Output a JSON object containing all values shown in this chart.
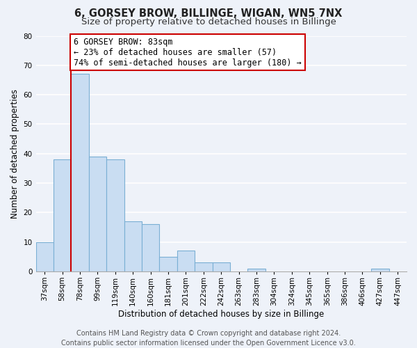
{
  "title": "6, GORSEY BROW, BILLINGE, WIGAN, WN5 7NX",
  "subtitle": "Size of property relative to detached houses in Billinge",
  "xlabel": "Distribution of detached houses by size in Billinge",
  "ylabel": "Number of detached properties",
  "bar_labels": [
    "37sqm",
    "58sqm",
    "78sqm",
    "99sqm",
    "119sqm",
    "140sqm",
    "160sqm",
    "181sqm",
    "201sqm",
    "222sqm",
    "242sqm",
    "263sqm",
    "283sqm",
    "304sqm",
    "324sqm",
    "345sqm",
    "365sqm",
    "386sqm",
    "406sqm",
    "427sqm",
    "447sqm"
  ],
  "bar_values": [
    10,
    38,
    67,
    39,
    38,
    17,
    16,
    5,
    7,
    3,
    3,
    0,
    1,
    0,
    0,
    0,
    0,
    0,
    0,
    1,
    0
  ],
  "bar_color": "#c9ddf2",
  "bar_edge_color": "#7aafd4",
  "highlight_index": 2,
  "highlight_line_color": "#cc0000",
  "annotation_text": "6 GORSEY BROW: 83sqm\n← 23% of detached houses are smaller (57)\n74% of semi-detached houses are larger (180) →",
  "annotation_box_color": "#ffffff",
  "annotation_box_edge": "#cc0000",
  "ylim": [
    0,
    80
  ],
  "yticks": [
    0,
    10,
    20,
    30,
    40,
    50,
    60,
    70,
    80
  ],
  "footer_line1": "Contains HM Land Registry data © Crown copyright and database right 2024.",
  "footer_line2": "Contains public sector information licensed under the Open Government Licence v3.0.",
  "background_color": "#eef2f9",
  "plot_background": "#eef2f9",
  "grid_color": "#ffffff",
  "title_fontsize": 10.5,
  "subtitle_fontsize": 9.5,
  "tick_fontsize": 7.5,
  "ylabel_fontsize": 8.5,
  "xlabel_fontsize": 8.5,
  "footer_fontsize": 7.0,
  "ann_fontsize": 8.5
}
